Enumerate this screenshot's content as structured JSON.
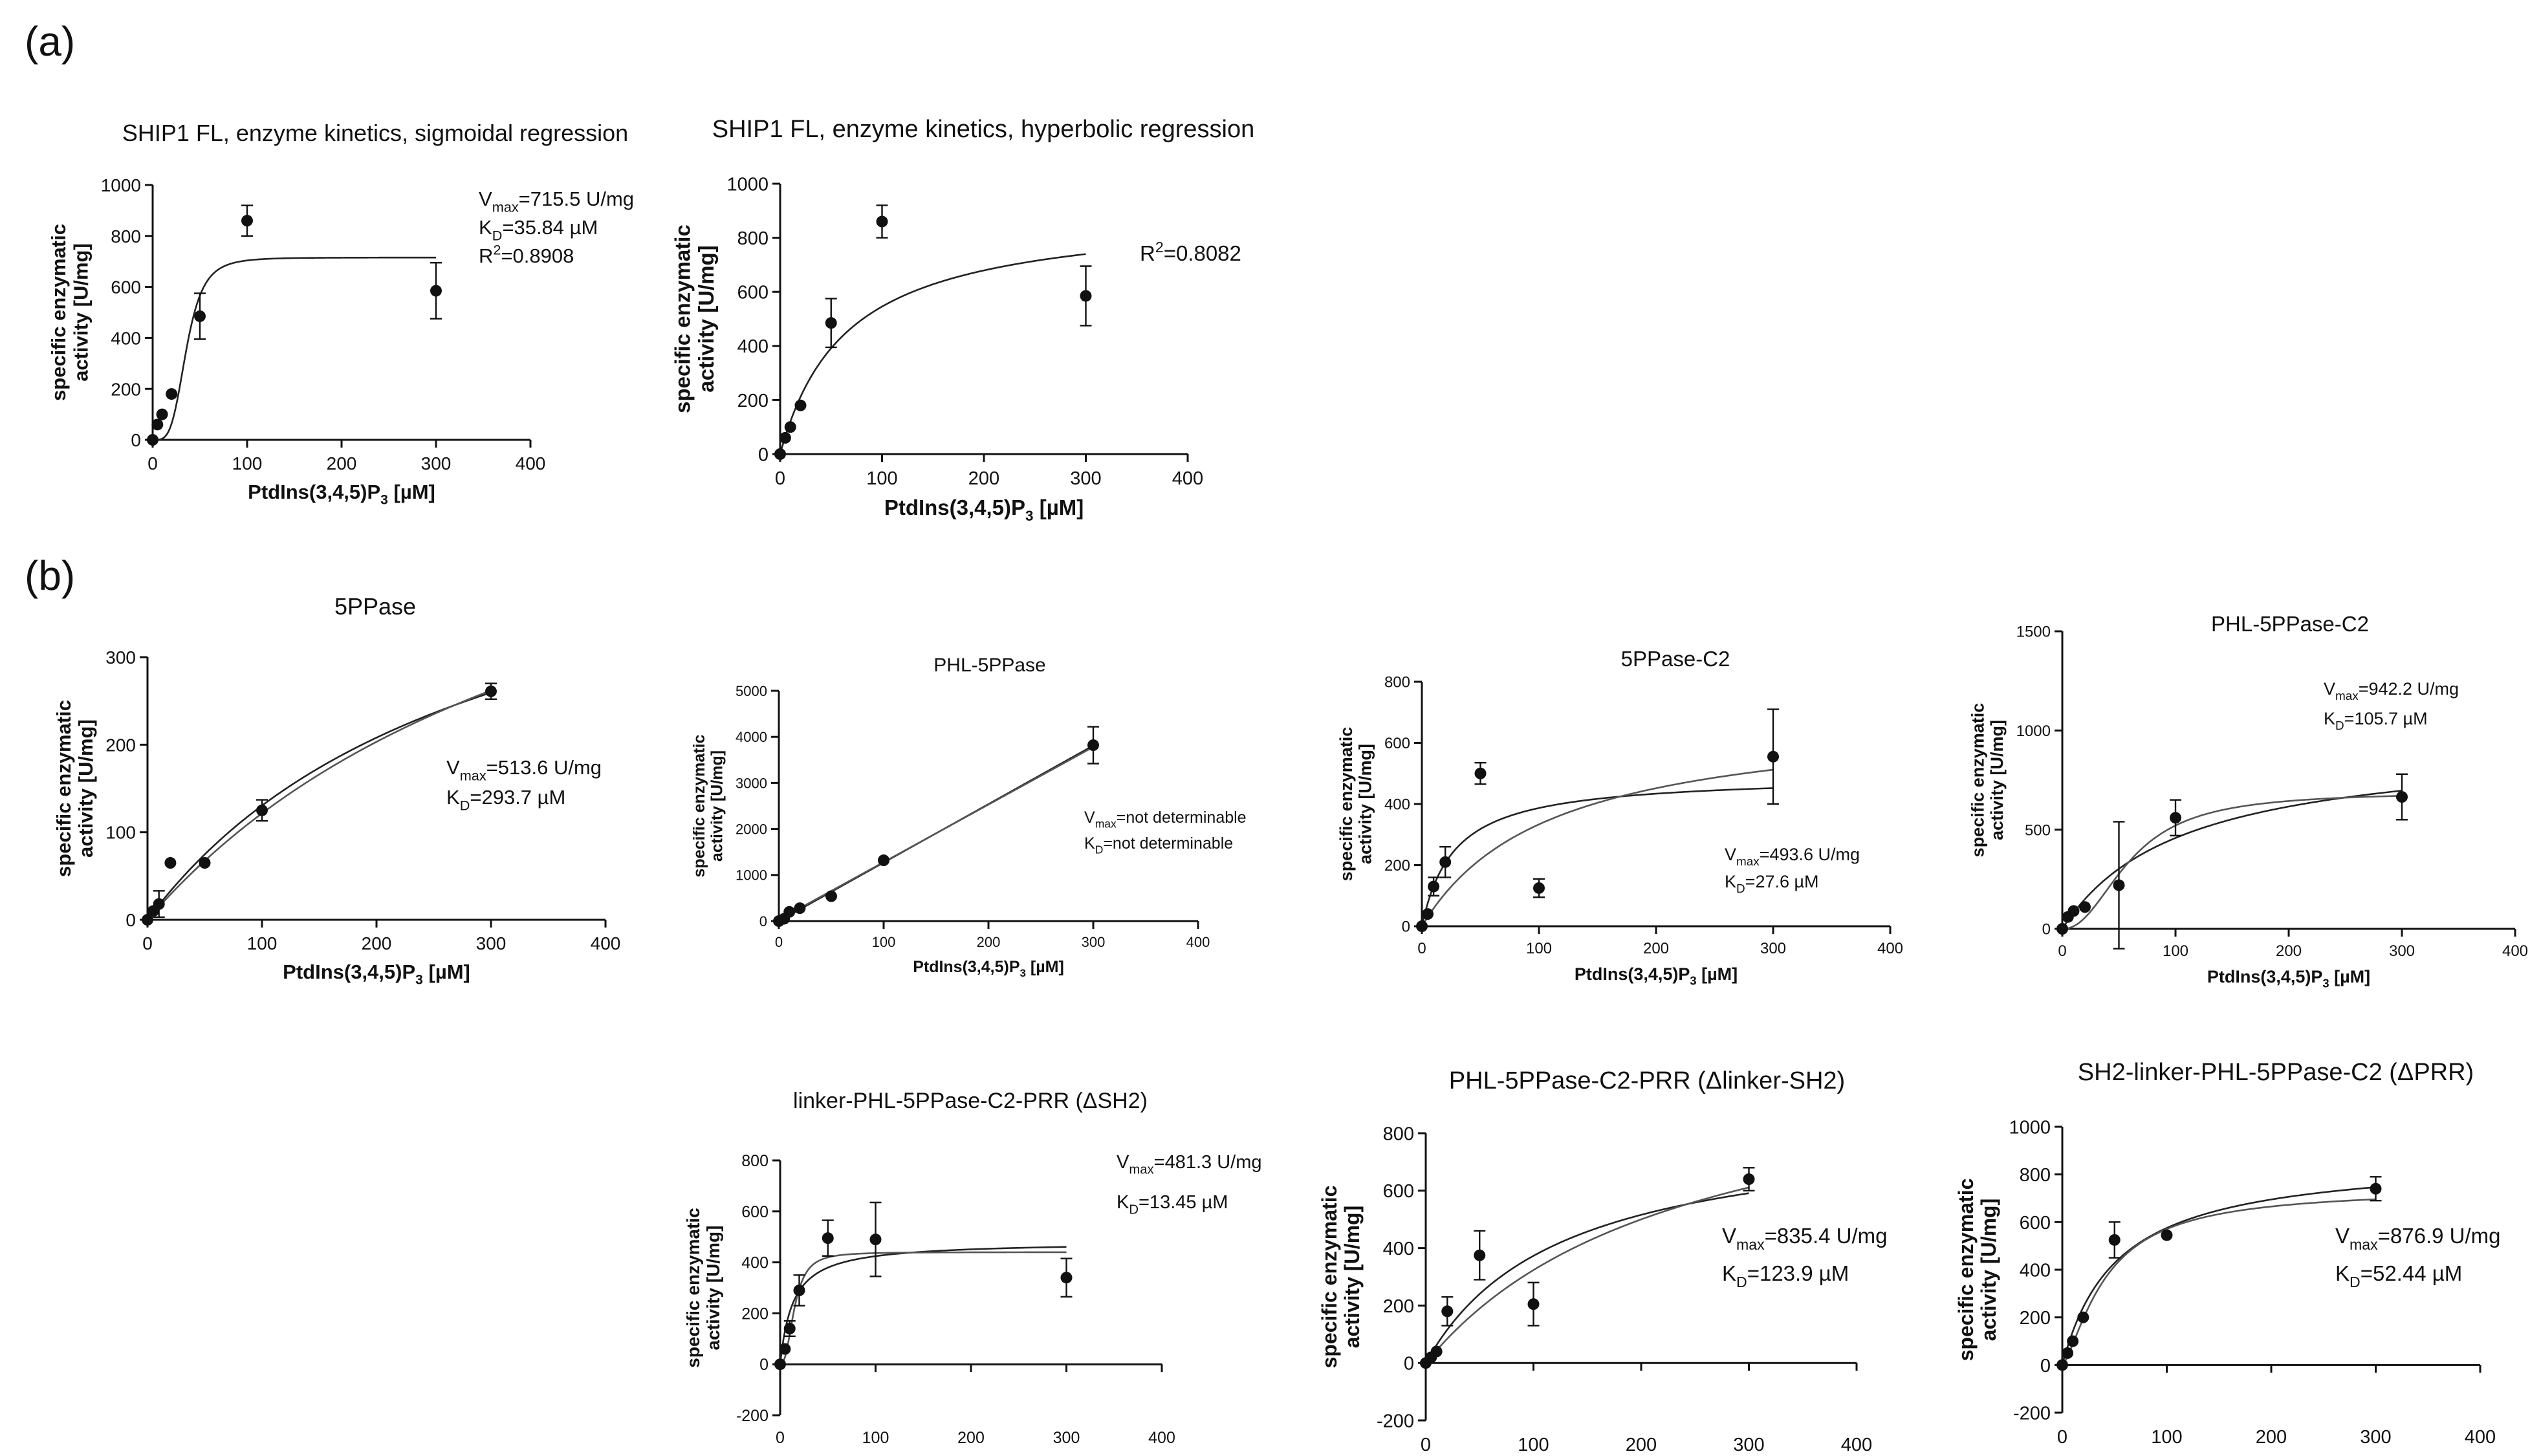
{
  "figure": {
    "panel_a": "(a)",
    "panel_b": "(b)"
  },
  "chart_data": [
    {
      "type": "scatter",
      "id": "a1",
      "title": "SHIP1 FL, enzyme kinetics, sigmoidal regression",
      "ylabel_lines": [
        "specific enzymatic",
        "activity [U/mg]"
      ],
      "xlabel": {
        "pre": "PtdIns(3,4,5)P",
        "sub": "3",
        "post": " [µM]"
      },
      "xlim": [
        0,
        400
      ],
      "ylim": [
        0,
        1000
      ],
      "xticks": [
        0,
        100,
        200,
        300,
        400
      ],
      "yticks": [
        0,
        200,
        400,
        600,
        800,
        1000
      ],
      "points": [
        {
          "x": 0,
          "y": 0,
          "err": 0
        },
        {
          "x": 5,
          "y": 60,
          "err": 0
        },
        {
          "x": 10,
          "y": 100,
          "err": 0
        },
        {
          "x": 20,
          "y": 180,
          "err": 0
        },
        {
          "x": 50,
          "y": 485,
          "err": 90
        },
        {
          "x": 100,
          "y": 860,
          "err": 60
        },
        {
          "x": 300,
          "y": 585,
          "err": 110
        }
      ],
      "fits": [
        {
          "model": "hill",
          "vmax": 715.5,
          "k": 35.84,
          "n": 4
        }
      ],
      "annotations": [
        {
          "base": "V",
          "sub": "max",
          "text": "=715.5 U/mg"
        },
        {
          "base": "K",
          "sub": "D",
          "text": "=35.84 µM"
        },
        {
          "base": "R",
          "sup": "2",
          "text": "=0.8908"
        }
      ]
    },
    {
      "type": "scatter",
      "id": "a2",
      "title": "SHIP1 FL, enzyme kinetics, hyperbolic regression",
      "ylabel_lines": [
        "specific enzymatic",
        "activity [U/mg]"
      ],
      "xlabel": {
        "pre": "PtdIns(3,4,5)P",
        "sub": "3",
        "post": " [µM]"
      },
      "xlim": [
        0,
        400
      ],
      "ylim": [
        0,
        1000
      ],
      "xticks": [
        0,
        100,
        200,
        300,
        400
      ],
      "yticks": [
        0,
        200,
        400,
        600,
        800,
        1000
      ],
      "points": [
        {
          "x": 0,
          "y": 0,
          "err": 0
        },
        {
          "x": 5,
          "y": 60,
          "err": 0
        },
        {
          "x": 10,
          "y": 100,
          "err": 0
        },
        {
          "x": 20,
          "y": 180,
          "err": 0
        },
        {
          "x": 50,
          "y": 485,
          "err": 90
        },
        {
          "x": 100,
          "y": 860,
          "err": 60
        },
        {
          "x": 300,
          "y": 585,
          "err": 110
        }
      ],
      "fits": [
        {
          "model": "mm",
          "vmax": 900,
          "k": 65
        }
      ],
      "annotations": [
        {
          "base": "R",
          "sup": "2",
          "text": "=0.8082"
        }
      ]
    },
    {
      "type": "scatter",
      "id": "b1",
      "title": "5PPase",
      "ylabel_lines": [
        "specific enzymatic",
        "activity [U/mg]"
      ],
      "xlabel": {
        "pre": "PtdIns(3,4,5)P",
        "sub": "3",
        "post": " [µM]"
      },
      "xlim": [
        0,
        400
      ],
      "ylim": [
        0,
        300
      ],
      "xticks": [
        0,
        100,
        200,
        300,
        400
      ],
      "yticks": [
        0,
        100,
        200,
        300
      ],
      "points": [
        {
          "x": 0,
          "y": 0,
          "err": 0
        },
        {
          "x": 5,
          "y": 10,
          "err": 0
        },
        {
          "x": 10,
          "y": 18,
          "err": 15
        },
        {
          "x": 20,
          "y": 65,
          "err": 0
        },
        {
          "x": 50,
          "y": 65,
          "err": 0
        },
        {
          "x": 100,
          "y": 125,
          "err": 12
        },
        {
          "x": 300,
          "y": 261,
          "err": 9
        }
      ],
      "fits": [
        {
          "model": "mm",
          "vmax": 513.6,
          "k": 293.7
        },
        {
          "model": "mm",
          "vmax": 620,
          "k": 410
        }
      ],
      "annotations": [
        {
          "base": "V",
          "sub": "max",
          "text": "=513.6 U/mg"
        },
        {
          "base": "K",
          "sub": "D",
          "text": "=293.7 µM"
        }
      ]
    },
    {
      "type": "scatter",
      "id": "b2",
      "title": "PHL-5PPase",
      "ylabel_lines": [
        "specific enzymatic",
        "activity [U/mg]"
      ],
      "xlabel": {
        "pre": "PtdIns(3,4,5)P",
        "sub": "3",
        "post": " [µM]"
      },
      "xlim": [
        0,
        400
      ],
      "ylim": [
        0,
        5000
      ],
      "xticks": [
        0,
        100,
        200,
        300,
        400
      ],
      "yticks": [
        0,
        1000,
        2000,
        3000,
        4000,
        5000
      ],
      "points": [
        {
          "x": 0,
          "y": 0,
          "err": 0
        },
        {
          "x": 5,
          "y": 50,
          "err": 0
        },
        {
          "x": 10,
          "y": 200,
          "err": 0
        },
        {
          "x": 20,
          "y": 280,
          "err": 0
        },
        {
          "x": 50,
          "y": 540,
          "err": 0
        },
        {
          "x": 100,
          "y": 1320,
          "err": 0
        },
        {
          "x": 300,
          "y": 3820,
          "err": 400
        }
      ],
      "fits": [
        {
          "model": "linear",
          "slope": 12.7,
          "intercept": 0
        },
        {
          "model": "linear",
          "slope": 12.5,
          "intercept": 30
        }
      ],
      "annotations": [
        {
          "base": "V",
          "sub": "max",
          "text": "=not determinable"
        },
        {
          "base": "K",
          "sub": "D",
          "text": "=not determinable"
        }
      ]
    },
    {
      "type": "scatter",
      "id": "b3",
      "title": "5PPase-C2",
      "ylabel_lines": [
        "specific enzymatic",
        "activity [U/mg]"
      ],
      "xlabel": {
        "pre": "PtdIns(3,4,5)P",
        "sub": "3",
        "post": " [µM]"
      },
      "xlim": [
        0,
        400
      ],
      "ylim": [
        0,
        800
      ],
      "xticks": [
        0,
        100,
        200,
        300,
        400
      ],
      "yticks": [
        0,
        200,
        400,
        600,
        800
      ],
      "points": [
        {
          "x": 0,
          "y": 0,
          "err": 0
        },
        {
          "x": 5,
          "y": 40,
          "err": 0
        },
        {
          "x": 10,
          "y": 130,
          "err": 30
        },
        {
          "x": 20,
          "y": 210,
          "err": 50
        },
        {
          "x": 50,
          "y": 500,
          "err": 35
        },
        {
          "x": 100,
          "y": 125,
          "err": 30
        },
        {
          "x": 300,
          "y": 555,
          "err": 155
        }
      ],
      "fits": [
        {
          "model": "mm",
          "vmax": 493.6,
          "k": 27.6
        },
        {
          "model": "mm",
          "vmax": 700,
          "k": 110
        }
      ],
      "annotations": [
        {
          "base": "V",
          "sub": "max",
          "text": "=493.6 U/mg"
        },
        {
          "base": "K",
          "sub": "D",
          "text": "=27.6 µM"
        }
      ]
    },
    {
      "type": "scatter",
      "id": "b4",
      "title": "PHL-5PPase-C2",
      "ylabel_lines": [
        "specific enzymatic",
        "activity [U/mg]"
      ],
      "xlabel": {
        "pre": "PtdIns(3,4,5)P",
        "sub": "3",
        "post": " [µM]"
      },
      "xlim": [
        0,
        400
      ],
      "ylim": [
        0,
        1500
      ],
      "xticks": [
        0,
        100,
        200,
        300,
        400
      ],
      "yticks": [
        0,
        500,
        1000,
        1500
      ],
      "points": [
        {
          "x": 0,
          "y": 0,
          "err": 0
        },
        {
          "x": 5,
          "y": 60,
          "err": 0
        },
        {
          "x": 10,
          "y": 90,
          "err": 0
        },
        {
          "x": 20,
          "y": 110,
          "err": 0
        },
        {
          "x": 50,
          "y": 220,
          "err": 320
        },
        {
          "x": 100,
          "y": 560,
          "err": 90
        },
        {
          "x": 300,
          "y": 665,
          "err": 115
        }
      ],
      "fits": [
        {
          "model": "mm",
          "vmax": 942.2,
          "k": 105.7
        },
        {
          "model": "hill",
          "vmax": 690,
          "k": 60,
          "n": 2.2
        }
      ],
      "annotations": [
        {
          "base": "V",
          "sub": "max",
          "text": "=942.2 U/mg"
        },
        {
          "base": "K",
          "sub": "D",
          "text": "=105.7 µM"
        }
      ]
    },
    {
      "type": "scatter",
      "id": "b5",
      "title": "linker-PHL-5PPase-C2-PRR (ΔSH2)",
      "ylabel_lines": [
        "specific enzymatic",
        "activity [U/mg]"
      ],
      "xlabel": {
        "pre": "PtdIns(3,4,5)P",
        "sub": "3",
        "post": " [µM]"
      },
      "xlim": [
        0,
        400
      ],
      "ylim": [
        -200,
        800
      ],
      "xticks": [
        0,
        100,
        200,
        300,
        400
      ],
      "yticks": [
        -200,
        0,
        200,
        400,
        600,
        800
      ],
      "points": [
        {
          "x": 0,
          "y": 0,
          "err": 0
        },
        {
          "x": 5,
          "y": 60,
          "err": 0
        },
        {
          "x": 10,
          "y": 140,
          "err": 30
        },
        {
          "x": 20,
          "y": 290,
          "err": 60
        },
        {
          "x": 50,
          "y": 495,
          "err": 70
        },
        {
          "x": 100,
          "y": 490,
          "err": 145
        },
        {
          "x": 300,
          "y": 340,
          "err": 75
        }
      ],
      "fits": [
        {
          "model": "mm",
          "vmax": 481.3,
          "k": 13.45
        },
        {
          "model": "hill",
          "vmax": 440,
          "k": 15,
          "n": 2.5
        }
      ],
      "annotations": [
        {
          "base": "V",
          "sub": "max",
          "text": "=481.3 U/mg"
        },
        {
          "base": "K",
          "sub": "D",
          "text": "=13.45 µM"
        }
      ]
    },
    {
      "type": "scatter",
      "id": "b6",
      "title": "PHL-5PPase-C2-PRR (Δlinker-SH2)",
      "ylabel_lines": [
        "specific enzymatic",
        "activity [U/mg]"
      ],
      "xlabel": {
        "pre": "PtdIns(3,4,5)P",
        "sub": "3",
        "post": " [µM]"
      },
      "xlim": [
        0,
        400
      ],
      "ylim": [
        -200,
        800
      ],
      "xticks": [
        0,
        100,
        200,
        300,
        400
      ],
      "yticks": [
        -200,
        0,
        200,
        400,
        600,
        800
      ],
      "points": [
        {
          "x": 0,
          "y": 0,
          "err": 0
        },
        {
          "x": 5,
          "y": 20,
          "err": 0
        },
        {
          "x": 10,
          "y": 40,
          "err": 0
        },
        {
          "x": 20,
          "y": 180,
          "err": 50
        },
        {
          "x": 50,
          "y": 375,
          "err": 85
        },
        {
          "x": 100,
          "y": 205,
          "err": 75
        },
        {
          "x": 300,
          "y": 640,
          "err": 40
        }
      ],
      "fits": [
        {
          "model": "mm",
          "vmax": 835.4,
          "k": 123.9
        },
        {
          "model": "mm",
          "vmax": 1100,
          "k": 240
        }
      ],
      "annotations": [
        {
          "base": "V",
          "sub": "max",
          "text": "=835.4 U/mg"
        },
        {
          "base": "K",
          "sub": "D",
          "text": "=123.9 µM"
        }
      ]
    },
    {
      "type": "scatter",
      "id": "b7",
      "title": "SH2-linker-PHL-5PPase-C2 (ΔPRR)",
      "ylabel_lines": [
        "specific enzymatic",
        "activity [U/mg]"
      ],
      "xlabel": {
        "pre": "PtdIns(3,4,5)P",
        "sub": "3",
        "post": " [µM]"
      },
      "xlim": [
        0,
        400
      ],
      "ylim": [
        -200,
        1000
      ],
      "xticks": [
        0,
        100,
        200,
        300,
        400
      ],
      "yticks": [
        -200,
        0,
        200,
        400,
        600,
        800,
        1000
      ],
      "points": [
        {
          "x": 0,
          "y": 0,
          "err": 0
        },
        {
          "x": 5,
          "y": 50,
          "err": 0
        },
        {
          "x": 10,
          "y": 100,
          "err": 0
        },
        {
          "x": 20,
          "y": 200,
          "err": 0
        },
        {
          "x": 50,
          "y": 525,
          "err": 75
        },
        {
          "x": 100,
          "y": 545,
          "err": 0
        },
        {
          "x": 300,
          "y": 740,
          "err": 50
        }
      ],
      "fits": [
        {
          "model": "mm",
          "vmax": 876.9,
          "k": 52.44
        },
        {
          "model": "hill",
          "vmax": 740,
          "k": 42,
          "n": 1.4
        }
      ],
      "annotations": [
        {
          "base": "V",
          "sub": "max",
          "text": "=876.9 U/mg"
        },
        {
          "base": "K",
          "sub": "D",
          "text": "=52.44 µM"
        }
      ]
    }
  ]
}
